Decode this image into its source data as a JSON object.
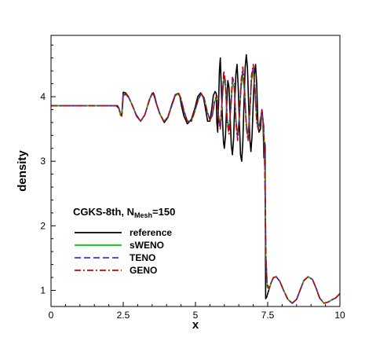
{
  "chart_data": {
    "type": "line",
    "xlabel": "x",
    "ylabel": "density",
    "xlim": [
      0,
      10
    ],
    "ylim": [
      0.75,
      4.95
    ],
    "xticks": [
      0,
      2.5,
      5,
      7.5,
      10
    ],
    "xtick_labels": [
      "0",
      "2.5",
      "5",
      "7.5",
      "10"
    ],
    "yticks": [
      1,
      2,
      3,
      4
    ],
    "ytick_labels": [
      "1",
      "2",
      "3",
      "4"
    ],
    "grid": false,
    "legend": {
      "placement": "lower-left",
      "title": "CGKS-8th, N",
      "title_subscript": "Mesh",
      "title_suffix": "=150"
    },
    "series": [
      {
        "name": "reference",
        "color": "#000000",
        "dash": "solid",
        "x": [
          0,
          1.0,
          2.0,
          2.2,
          2.3,
          2.35,
          2.4,
          2.45,
          2.5,
          2.58,
          2.68,
          2.8,
          2.95,
          3.1,
          3.25,
          3.4,
          3.5,
          3.54,
          3.58,
          3.66,
          3.78,
          3.92,
          4.05,
          4.18,
          4.3,
          4.4,
          4.46,
          4.52,
          4.6,
          4.72,
          4.86,
          4.98,
          5.08,
          5.18,
          5.28,
          5.36,
          5.42,
          5.5,
          5.56,
          5.62,
          5.68,
          5.72,
          5.74,
          5.77,
          5.8,
          5.83,
          5.86,
          5.89,
          5.93,
          5.97,
          6.0,
          6.04,
          6.08,
          6.12,
          6.16,
          6.2,
          6.24,
          6.28,
          6.32,
          6.36,
          6.4,
          6.44,
          6.48,
          6.52,
          6.56,
          6.6,
          6.64,
          6.68,
          6.72,
          6.76,
          6.8,
          6.84,
          6.88,
          6.92,
          6.96,
          7.0,
          7.04,
          7.08,
          7.12,
          7.16,
          7.2,
          7.25,
          7.3,
          7.34,
          7.37,
          7.39,
          7.41,
          7.43,
          7.47,
          7.5,
          7.55,
          7.62,
          7.7,
          7.8,
          7.92,
          8.05,
          8.2,
          8.35,
          8.5,
          8.62,
          8.75,
          8.9,
          9.05,
          9.18,
          9.3,
          9.45,
          9.6,
          9.75,
          9.85,
          10.0
        ],
        "y": [
          3.86,
          3.86,
          3.86,
          3.86,
          3.86,
          3.82,
          3.74,
          3.72,
          4.07,
          4.06,
          4.0,
          3.88,
          3.72,
          3.62,
          3.72,
          3.95,
          4.05,
          4.06,
          4.02,
          3.88,
          3.72,
          3.6,
          3.68,
          3.88,
          4.03,
          4.05,
          4.0,
          3.85,
          3.7,
          3.58,
          3.65,
          3.82,
          4.0,
          4.06,
          3.98,
          3.78,
          3.62,
          3.62,
          3.8,
          4.02,
          4.08,
          4.05,
          3.6,
          3.45,
          3.9,
          4.4,
          4.6,
          4.2,
          3.7,
          3.3,
          3.2,
          3.4,
          3.85,
          4.25,
          4.15,
          3.7,
          3.25,
          3.1,
          3.35,
          3.9,
          4.35,
          4.5,
          4.15,
          3.6,
          3.1,
          3.0,
          3.3,
          3.9,
          4.45,
          4.65,
          4.45,
          3.9,
          3.35,
          3.15,
          3.4,
          3.9,
          4.35,
          4.5,
          4.2,
          3.6,
          3.45,
          3.5,
          3.8,
          3.6,
          3.05,
          3.3,
          3.25,
          0.87,
          0.9,
          0.95,
          1.02,
          1.12,
          1.2,
          1.21,
          1.14,
          1.0,
          0.86,
          0.8,
          0.86,
          1.0,
          1.15,
          1.21,
          1.17,
          1.03,
          0.88,
          0.8,
          0.82,
          0.86,
          0.88,
          0.95
        ]
      },
      {
        "name": "sWENO",
        "color": "#00cc00",
        "dash": "solid",
        "x": [
          0,
          1.0,
          2.0,
          2.25,
          2.35,
          2.4,
          2.45,
          2.5,
          2.6,
          2.7,
          2.82,
          2.96,
          3.1,
          3.25,
          3.4,
          3.5,
          3.56,
          3.64,
          3.76,
          3.9,
          4.04,
          4.18,
          4.3,
          4.42,
          4.5,
          4.6,
          4.72,
          4.86,
          4.98,
          5.1,
          5.2,
          5.3,
          5.4,
          5.5,
          5.58,
          5.66,
          5.74,
          5.8,
          5.86,
          5.92,
          5.98,
          6.04,
          6.1,
          6.16,
          6.22,
          6.28,
          6.34,
          6.4,
          6.46,
          6.52,
          6.58,
          6.64,
          6.7,
          6.76,
          6.82,
          6.88,
          6.94,
          7.0,
          7.06,
          7.12,
          7.18,
          7.24,
          7.3,
          7.36,
          7.4,
          7.44,
          7.48,
          7.55,
          7.62,
          7.7,
          7.8,
          7.92,
          8.05,
          8.2,
          8.35,
          8.5,
          8.62,
          8.75,
          8.9,
          9.05,
          9.18,
          9.3,
          9.45,
          9.6,
          9.75,
          9.85,
          10.0
        ],
        "y": [
          3.86,
          3.86,
          3.86,
          3.86,
          3.82,
          3.72,
          3.7,
          4.02,
          4.03,
          3.98,
          3.86,
          3.7,
          3.62,
          3.72,
          3.94,
          4.04,
          4.02,
          3.9,
          3.74,
          3.62,
          3.68,
          3.86,
          4.02,
          4.04,
          3.96,
          3.78,
          3.62,
          3.62,
          3.78,
          3.96,
          4.04,
          3.98,
          3.78,
          3.64,
          3.7,
          3.92,
          4.0,
          3.7,
          3.55,
          3.9,
          4.3,
          4.15,
          3.65,
          3.5,
          3.8,
          4.2,
          4.15,
          3.65,
          3.4,
          3.7,
          4.15,
          4.35,
          4.05,
          3.6,
          3.4,
          3.75,
          4.25,
          4.4,
          4.1,
          3.65,
          3.5,
          3.6,
          3.75,
          3.55,
          2.9,
          1.5,
          1.05,
          1.02,
          1.12,
          1.2,
          1.21,
          1.14,
          1.0,
          0.86,
          0.8,
          0.86,
          1.0,
          1.15,
          1.21,
          1.17,
          1.03,
          0.88,
          0.8,
          0.82,
          0.86,
          0.88,
          0.95
        ]
      },
      {
        "name": "TENO",
        "color": "#3333ee",
        "dash": "8,4",
        "x": [
          0,
          1.0,
          2.0,
          2.25,
          2.35,
          2.4,
          2.45,
          2.5,
          2.6,
          2.7,
          2.82,
          2.96,
          3.1,
          3.25,
          3.4,
          3.5,
          3.56,
          3.64,
          3.76,
          3.9,
          4.04,
          4.18,
          4.3,
          4.42,
          4.5,
          4.6,
          4.72,
          4.86,
          4.98,
          5.1,
          5.2,
          5.3,
          5.4,
          5.5,
          5.58,
          5.66,
          5.74,
          5.8,
          5.86,
          5.92,
          5.98,
          6.04,
          6.1,
          6.16,
          6.22,
          6.28,
          6.34,
          6.4,
          6.46,
          6.52,
          6.58,
          6.64,
          6.7,
          6.76,
          6.82,
          6.88,
          6.94,
          7.0,
          7.06,
          7.12,
          7.18,
          7.24,
          7.3,
          7.36,
          7.4,
          7.44,
          7.48,
          7.55,
          7.62,
          7.7,
          7.8,
          7.92,
          8.05,
          8.2,
          8.35,
          8.5,
          8.62,
          8.75,
          8.9,
          9.05,
          9.18,
          9.3,
          9.45,
          9.6,
          9.75,
          9.85,
          10.0
        ],
        "y": [
          3.86,
          3.86,
          3.86,
          3.86,
          3.82,
          3.72,
          3.7,
          4.03,
          4.04,
          3.98,
          3.86,
          3.7,
          3.62,
          3.72,
          3.94,
          4.05,
          4.03,
          3.9,
          3.74,
          3.62,
          3.68,
          3.86,
          4.02,
          4.05,
          3.97,
          3.78,
          3.62,
          3.62,
          3.78,
          3.96,
          4.05,
          3.98,
          3.78,
          3.64,
          3.7,
          3.93,
          4.02,
          3.68,
          3.52,
          3.92,
          4.36,
          4.2,
          3.62,
          3.45,
          3.82,
          4.26,
          4.2,
          3.62,
          3.35,
          3.7,
          4.2,
          4.42,
          4.1,
          3.55,
          3.35,
          3.75,
          4.3,
          4.46,
          4.12,
          3.62,
          3.5,
          3.62,
          3.78,
          3.55,
          2.9,
          1.5,
          1.1,
          1.03,
          1.12,
          1.2,
          1.21,
          1.14,
          1.0,
          0.86,
          0.8,
          0.86,
          1.0,
          1.15,
          1.21,
          1.17,
          1.03,
          0.88,
          0.8,
          0.82,
          0.86,
          0.88,
          0.95
        ]
      },
      {
        "name": "GENO",
        "color": "#cc0000",
        "dash": "8,3,2,3",
        "x": [
          0,
          1.0,
          2.0,
          2.25,
          2.35,
          2.4,
          2.45,
          2.5,
          2.6,
          2.7,
          2.82,
          2.96,
          3.1,
          3.25,
          3.4,
          3.5,
          3.56,
          3.64,
          3.76,
          3.9,
          4.04,
          4.18,
          4.3,
          4.42,
          4.5,
          4.6,
          4.72,
          4.86,
          4.98,
          5.1,
          5.2,
          5.3,
          5.4,
          5.5,
          5.58,
          5.66,
          5.74,
          5.8,
          5.86,
          5.92,
          5.98,
          6.04,
          6.1,
          6.16,
          6.22,
          6.28,
          6.34,
          6.4,
          6.46,
          6.52,
          6.58,
          6.64,
          6.7,
          6.76,
          6.82,
          6.88,
          6.94,
          7.0,
          7.06,
          7.12,
          7.18,
          7.24,
          7.3,
          7.36,
          7.4,
          7.44,
          7.48,
          7.55,
          7.62,
          7.7,
          7.8,
          7.92,
          8.05,
          8.2,
          8.35,
          8.5,
          8.62,
          8.75,
          8.9,
          9.05,
          9.18,
          9.3,
          9.45,
          9.6,
          9.75,
          9.85,
          10.0
        ],
        "y": [
          3.86,
          3.86,
          3.86,
          3.86,
          3.82,
          3.72,
          3.7,
          4.04,
          4.04,
          3.98,
          3.86,
          3.7,
          3.62,
          3.72,
          3.94,
          4.05,
          4.03,
          3.9,
          3.74,
          3.62,
          3.68,
          3.86,
          4.02,
          4.05,
          3.97,
          3.78,
          3.62,
          3.62,
          3.78,
          3.96,
          4.05,
          3.98,
          3.78,
          3.64,
          3.7,
          3.93,
          4.02,
          3.66,
          3.5,
          3.93,
          4.4,
          4.22,
          3.6,
          3.42,
          3.83,
          4.3,
          4.22,
          3.6,
          3.32,
          3.7,
          4.24,
          4.46,
          4.12,
          3.53,
          3.32,
          3.75,
          4.33,
          4.5,
          4.14,
          3.6,
          3.48,
          3.62,
          3.8,
          3.55,
          2.9,
          1.5,
          1.08,
          1.03,
          1.12,
          1.2,
          1.21,
          1.14,
          1.0,
          0.86,
          0.8,
          0.86,
          1.0,
          1.15,
          1.21,
          1.17,
          1.03,
          0.88,
          0.8,
          0.82,
          0.86,
          0.88,
          0.95
        ]
      }
    ]
  }
}
